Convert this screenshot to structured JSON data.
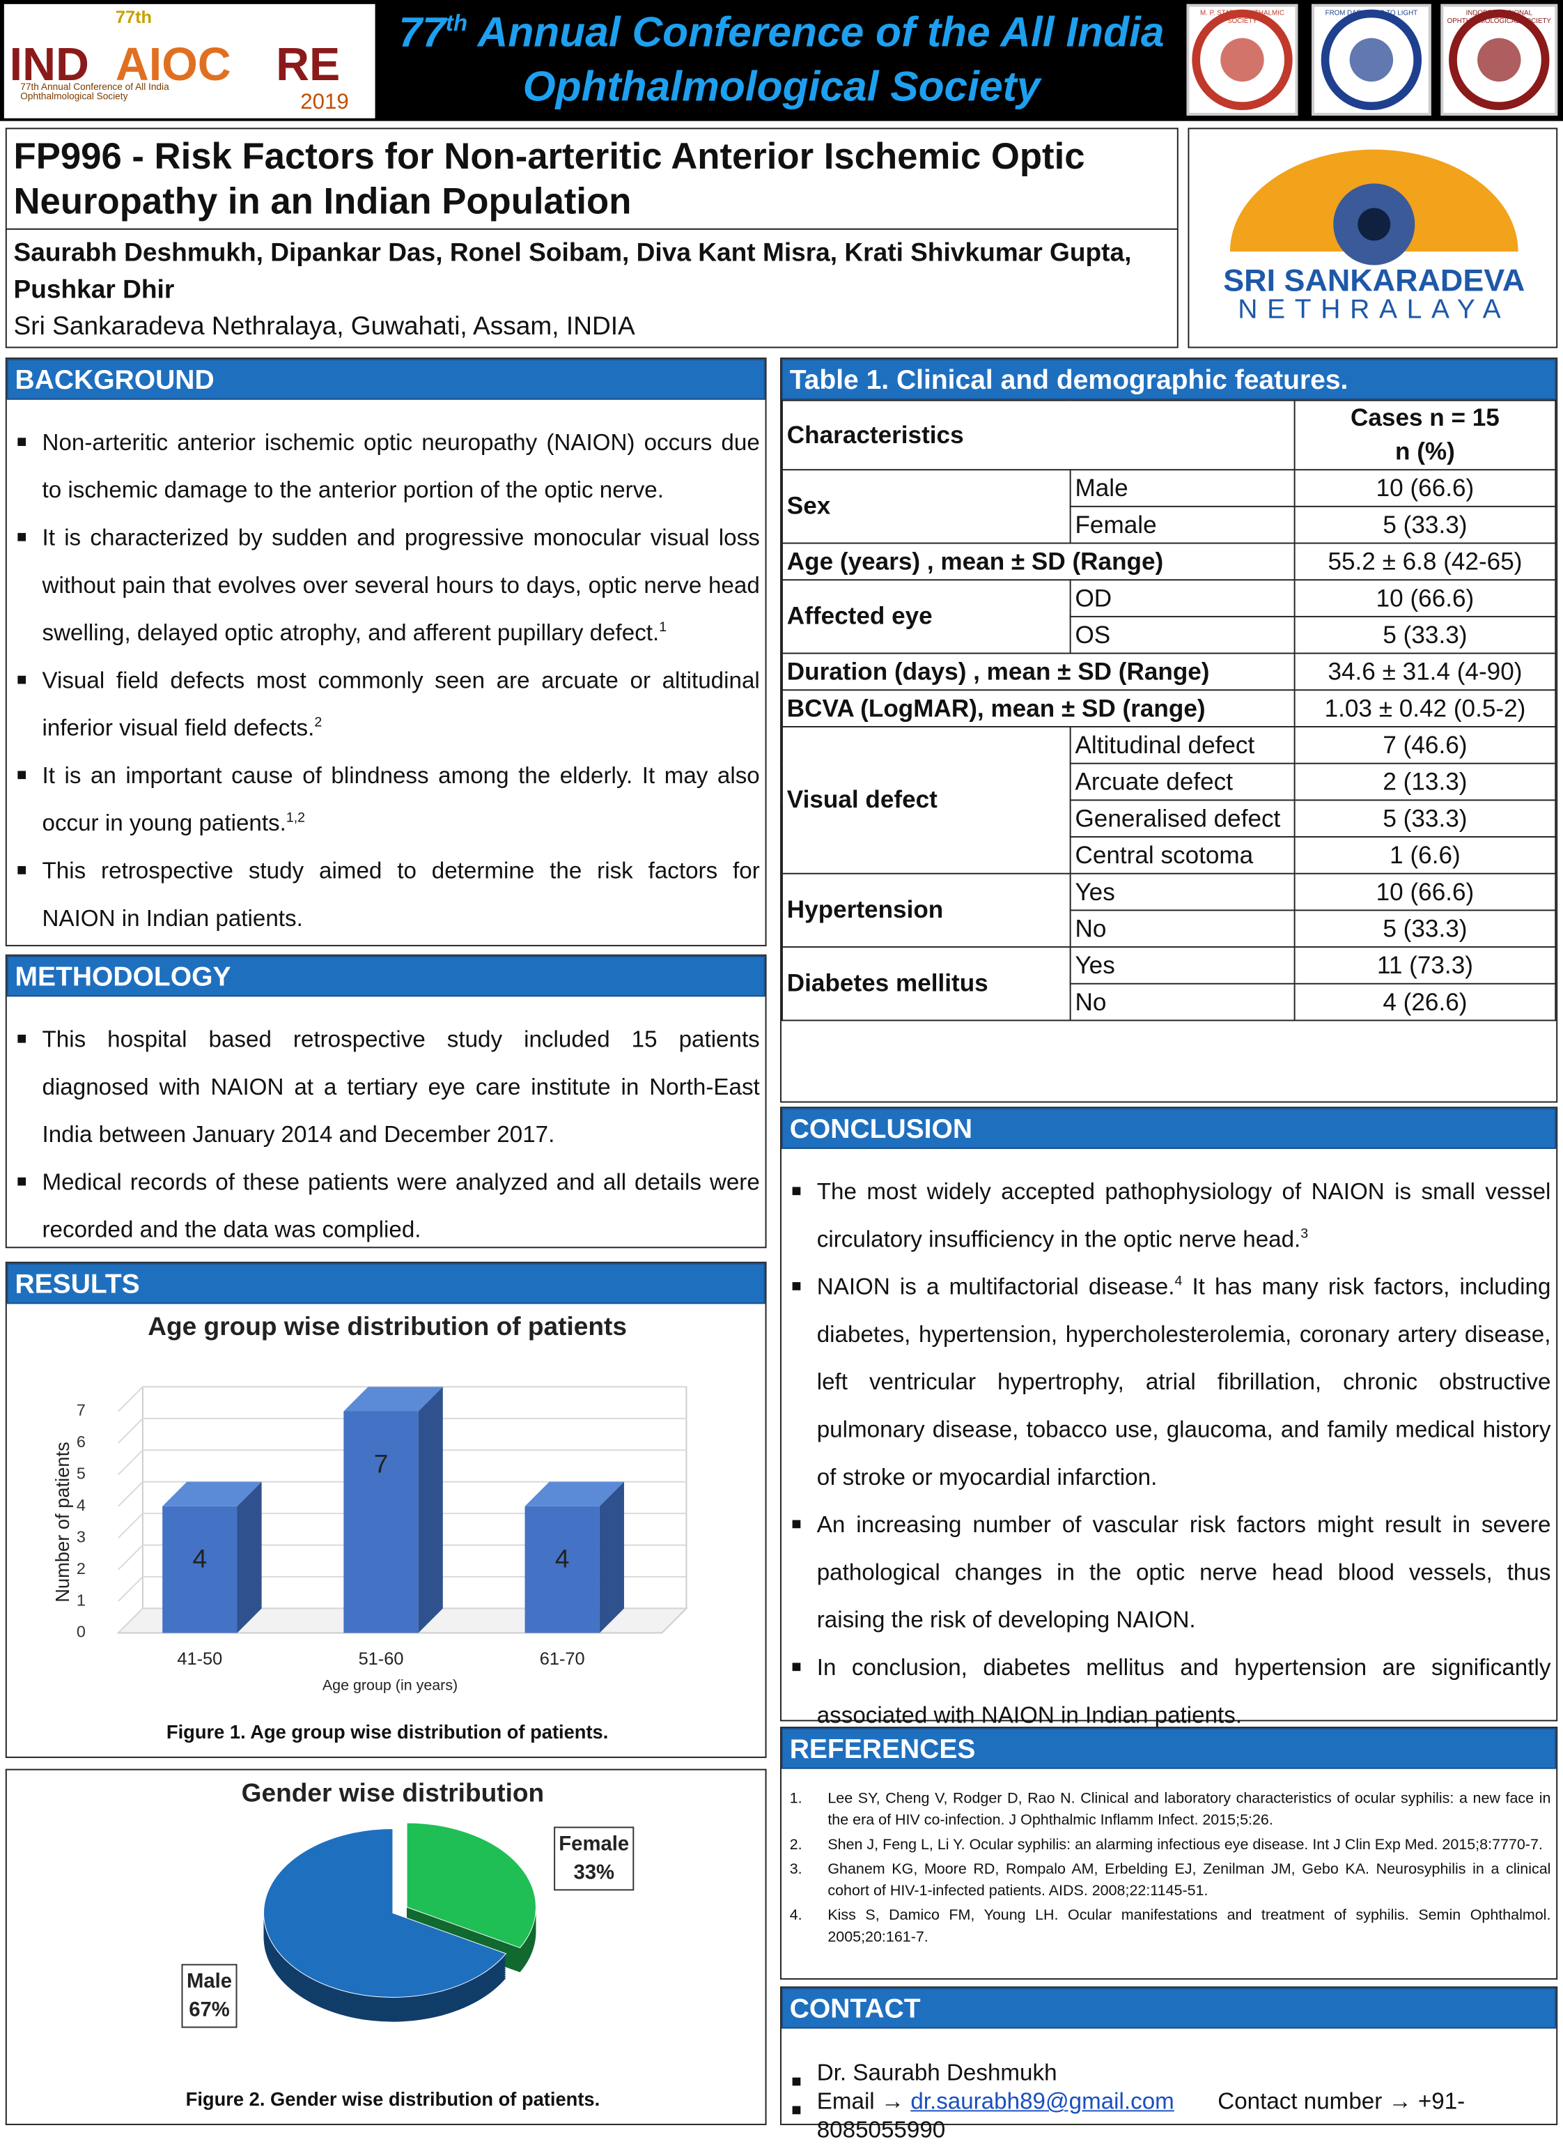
{
  "header": {
    "logo": {
      "word_start": "IND",
      "word_middle": "AIOC",
      "word_end": "RE",
      "edition": "77th",
      "tagline": "77th Annual Conference of All India Ophthalmological Society",
      "year": "2019"
    },
    "conference_title": {
      "number": "77",
      "suffix": "th",
      "rest": " Annual Conference  of the All India Ophthalmological Society"
    },
    "society_logos": [
      "M. P. STATE OPHTHALMIC SOCIETY",
      "FROM DARKNESS TO LIGHT",
      "INDORE DIVISIONAL OPHTHALMOLOGICAL SOCIETY"
    ]
  },
  "poster": {
    "title": "FP996 - Risk Factors for Non-arteritic Anterior Ischemic Optic Neuropathy in an Indian Population",
    "authors": "Saurabh Deshmukh, Dipankar Das, Ronel Soibam, Diva Kant Misra, Krati Shivkumar Gupta, Pushkar Dhir",
    "affiliation": "Sri Sankaradeva Nethralaya, Guwahati, Assam, INDIA",
    "institute_logo": {
      "name": "SRI SANKARADEVA",
      "subname": "NETHRALAYA"
    }
  },
  "background": {
    "heading": "BACKGROUND",
    "bullets": [
      {
        "text": "Non-arteritic anterior ischemic optic neuropathy (NAION) occurs due to ischemic damage to the anterior portion of the optic nerve."
      },
      {
        "text": "It is characterized by sudden and progressive monocular visual loss without pain that evolves over several hours to days, optic nerve head swelling, delayed optic atrophy, and afferent pupillary defect.",
        "sup": "1"
      },
      {
        "text": "Visual field defects most commonly seen are arcuate or altitudinal inferior visual field defects.",
        "sup": "2"
      },
      {
        "text": "It is an important cause of blindness among the elderly. It may also occur in young patients.",
        "sup": "1,2"
      },
      {
        "text": "This retrospective study aimed to determine the risk factors for NAION in Indian patients."
      }
    ]
  },
  "methodology": {
    "heading": "METHODOLOGY",
    "bullets": [
      {
        "text": "This hospital based retrospective study included 15 patients diagnosed with NAION at a tertiary eye care institute in North-East India between January 2014 and December 2017."
      },
      {
        "text": "Medical records of these patients were analyzed and all details were recorded and the data was complied."
      }
    ]
  },
  "results": {
    "heading": "RESULTS"
  },
  "chart_data": [
    {
      "type": "bar",
      "title": "Age group wise distribution of patients",
      "categories": [
        "41-50",
        "51-60",
        "61-70"
      ],
      "values": [
        4,
        7,
        4
      ],
      "color": "#4472c4",
      "xlabel": "Age group (in years)",
      "ylabel": "Number of patients",
      "ylim": [
        0,
        7
      ],
      "yticks": [
        0,
        1,
        2,
        3,
        4,
        5,
        6,
        7
      ],
      "grid": true,
      "caption": "Figure 1. Age group wise distribution of patients."
    },
    {
      "type": "pie",
      "title": "Gender wise distribution",
      "categories": [
        "Male",
        "Female"
      ],
      "values": [
        67,
        33
      ],
      "value_labels": [
        "67%",
        "33%"
      ],
      "colors": [
        "#1f6fbf",
        "#1fbf55"
      ],
      "caption": "Figure 2. Gender wise distribution of patients."
    }
  ],
  "table": {
    "title": "Table 1. Clinical and demographic features.",
    "header": {
      "characteristic": "Characteristics",
      "cases": "Cases n = 15",
      "unit": "n (%)"
    },
    "rows": [
      {
        "label": "Sex",
        "options": [
          {
            "label": "Male",
            "value": "10 (66.6)"
          },
          {
            "label": "Female",
            "value": "5 (33.3)"
          }
        ]
      },
      {
        "label": "Age (years) , mean ± SD (Range)",
        "value": "55.2 ± 6.8 (42-65)"
      },
      {
        "label": "Affected eye",
        "options": [
          {
            "label": "OD",
            "value": "10 (66.6)"
          },
          {
            "label": "OS",
            "value": "5 (33.3)"
          }
        ]
      },
      {
        "label": "Duration (days) , mean ± SD (Range)",
        "value": "34.6 ± 31.4 (4-90)"
      },
      {
        "label": "BCVA (LogMAR), mean ± SD (range)",
        "value": "1.03 ± 0.42 (0.5-2)"
      },
      {
        "label": "Visual defect",
        "options": [
          {
            "label": "Altitudinal defect",
            "value": "7 (46.6)"
          },
          {
            "label": "Arcuate defect",
            "value": "2 (13.3)"
          },
          {
            "label": "Generalised defect",
            "value": "5 (33.3)"
          },
          {
            "label": "Central scotoma",
            "value": "1 (6.6)"
          }
        ]
      },
      {
        "label": "Hypertension",
        "options": [
          {
            "label": "Yes",
            "value": "10 (66.6)"
          },
          {
            "label": "No",
            "value": "5 (33.3)"
          }
        ]
      },
      {
        "label": "Diabetes mellitus",
        "options": [
          {
            "label": "Yes",
            "value": "11 (73.3)"
          },
          {
            "label": "No",
            "value": "4 (26.6)"
          }
        ]
      }
    ]
  },
  "conclusion": {
    "heading": "CONCLUSION",
    "bullets": [
      {
        "text": "The most widely accepted pathophysiology of NAION is small vessel circulatory insufficiency in the optic nerve head.",
        "sup": "3"
      },
      {
        "text": "NAION is a multifactorial disease.",
        "sup": "4",
        "after": " It has many risk factors, including diabetes, hypertension, hypercholesterolemia, coronary artery disease, left ventricular hypertrophy, atrial fibrillation, chronic obstructive pulmonary disease, tobacco use, glaucoma, and family medical history of stroke or myocardial infarction."
      },
      {
        "text": "An increasing number of vascular risk factors might result in severe pathological changes in the optic nerve head blood vessels, thus raising the risk of developing NAION."
      },
      {
        "text": "In conclusion, diabetes mellitus and hypertension are significantly associated with NAION in Indian patients."
      }
    ]
  },
  "references": {
    "heading": "REFERENCES",
    "items": [
      {
        "number": "1.",
        "text": "Lee SY, Cheng V, Rodger D, Rao N. Clinical and laboratory characteristics of ocular syphilis: a new face in the era of HIV co-infection. J Ophthalmic Inflamm Infect. 2015;5:26."
      },
      {
        "number": "2.",
        "text": "Shen J, Feng L, Li Y. Ocular syphilis: an alarming infectious eye disease. Int J Clin Exp Med. 2015;8:7770-7."
      },
      {
        "number": "3.",
        "text": "Ghanem KG, Moore RD, Rompalo AM, Erbelding EJ, Zenilman JM, Gebo KA. Neurosyphilis in a clinical cohort of HIV-1-infected patients. AIDS. 2008;22:1145-51."
      },
      {
        "number": "4.",
        "text": "Kiss S, Damico FM, Young LH. Ocular manifestations and treatment of syphilis. Semin Ophthalmol. 2005;20:161-7."
      }
    ]
  },
  "contact": {
    "heading": "CONTACT",
    "name": "Dr. Saurabh Deshmukh",
    "email_label": "Email →",
    "email": "dr.saurabh89@gmail.com",
    "phone_label": "Contact number →",
    "phone": "+91-8085055990"
  }
}
